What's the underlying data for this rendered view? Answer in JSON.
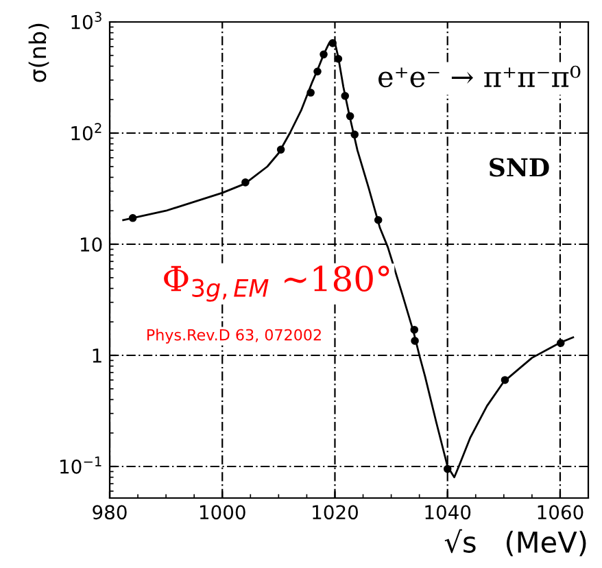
{
  "chart_data": {
    "type": "line",
    "xlabel": "√s   (MeV)",
    "ylabel": "σ(nb)",
    "log": "y",
    "grid": true,
    "legend": false,
    "xlim": [
      980,
      1065
    ],
    "xticks": [
      980,
      1000,
      1020,
      1040,
      1060
    ],
    "ylim": [
      0.052,
      1000
    ],
    "yticks": [
      {
        "value": 0.1,
        "label": "10$^{−1}$"
      },
      1,
      10,
      {
        "value": 100,
        "label": "10$^{2}$"
      },
      {
        "value": 1000,
        "label": "10$^{3}$"
      }
    ],
    "series": [
      {
        "color": "#000000",
        "marker": "none",
        "line_style": "solid",
        "x": [
          982.4,
          990,
          1000,
          1004,
          1008,
          1010,
          1012,
          1014,
          1016,
          1017,
          1018,
          1019,
          1020,
          1020.6,
          1021.5,
          1022.5,
          1024,
          1026,
          1028,
          1029.4,
          1030,
          1032,
          1034,
          1035,
          1036,
          1038,
          1040,
          1041.2,
          1042,
          1044,
          1047,
          1050,
          1055,
          1060,
          1062.3
        ],
        "values": [
          16.5,
          20,
          29,
          35,
          50,
          66,
          100,
          160,
          290,
          380,
          510,
          650,
          650,
          480,
          260,
          150,
          70,
          32,
          14,
          9.4,
          7.5,
          3.5,
          1.6,
          1.0,
          0.65,
          0.25,
          0.1,
          0.08,
          0.1,
          0.18,
          0.35,
          0.58,
          0.95,
          1.3,
          1.45
        ]
      },
      {
        "type": "scatter",
        "color": "#000000",
        "marker": "circle",
        "x": [
          984.1,
          1004.1,
          1010.4,
          1015.7,
          1016.9,
          1018.0,
          1019.6,
          1020.6,
          1021.8,
          1022.7,
          1023.5,
          1027.7,
          1034.1,
          1034.2,
          1040.0,
          1050.2,
          1060.1
        ],
        "values": [
          17.2,
          36,
          71,
          231,
          358,
          510,
          645,
          466,
          216,
          142,
          97,
          16.5,
          1.7,
          1.35,
          0.095,
          0.6,
          1.29
        ]
      }
    ],
    "annotations": [
      "e⁺e⁻ → π⁺π⁻π⁰",
      "SND",
      "Φ$_{3g,EM}$ ~180°",
      "Phys.Rev.D 63, 072002"
    ]
  }
}
